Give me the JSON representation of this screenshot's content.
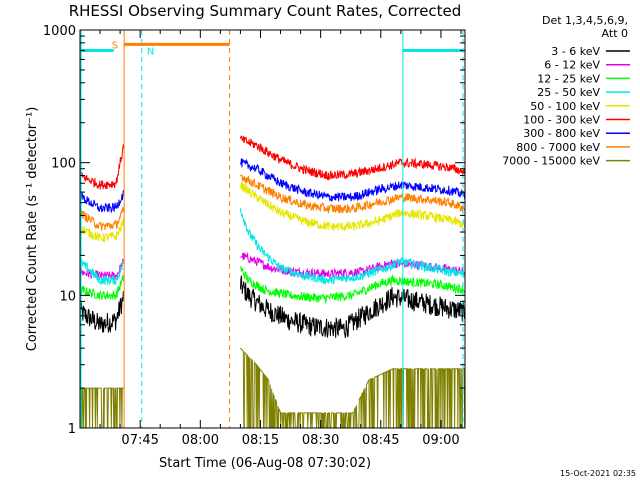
{
  "chart_data": {
    "type": "line",
    "title": "RHESSI Observing Summary Count Rates, Corrected",
    "xlabel": "Start Time (06-Aug-08 07:30:02)",
    "ylabel": "Corrected Count Rate (s⁻¹ detector⁻¹)",
    "y_scale": "log",
    "ylim": [
      1,
      1000
    ],
    "xlim_minutes": [
      0,
      96
    ],
    "x_tick_labels": [
      "07:45",
      "08:00",
      "08:15",
      "08:30",
      "08:45",
      "09:00"
    ],
    "x_tick_minutes": [
      15,
      30,
      45,
      60,
      75,
      90
    ],
    "y_tick_labels": [
      "1",
      "10",
      "100",
      "1000"
    ],
    "y_tick_values": [
      1,
      10,
      100,
      1000
    ],
    "legend_header": [
      "Det 1,3,4,5,6,9,",
      "Att 0"
    ],
    "legend_position": "right",
    "series": [
      {
        "name": "3 - 6 keV",
        "color": "#000000",
        "seg1": [
          [
            0,
            7.5
          ],
          [
            5,
            6
          ],
          [
            9,
            6.5
          ],
          [
            11,
            10
          ]
        ],
        "seg2": [
          [
            40,
            12
          ],
          [
            42,
            10
          ],
          [
            46,
            8
          ],
          [
            52,
            6.5
          ],
          [
            58,
            5.8
          ],
          [
            66,
            5.6
          ],
          [
            72,
            7.5
          ],
          [
            78,
            9.8
          ],
          [
            84,
            9
          ],
          [
            90,
            8.2
          ],
          [
            96,
            7.5
          ]
        ]
      },
      {
        "name": "6 - 12 keV",
        "color": "#e600e6",
        "seg1": [
          [
            0,
            15
          ],
          [
            5,
            14
          ],
          [
            9,
            14
          ],
          [
            11,
            18
          ]
        ],
        "seg2": [
          [
            40,
            20
          ],
          [
            44,
            18
          ],
          [
            48,
            16
          ],
          [
            54,
            15
          ],
          [
            62,
            14.5
          ],
          [
            70,
            15
          ],
          [
            78,
            17.5
          ],
          [
            84,
            17
          ],
          [
            90,
            16
          ],
          [
            96,
            15
          ]
        ]
      },
      {
        "name": "12 - 25 keV",
        "color": "#00ff00",
        "seg1": [
          [
            0,
            11
          ],
          [
            5,
            10
          ],
          [
            9,
            10
          ],
          [
            11,
            14
          ]
        ],
        "seg2": [
          [
            40,
            16
          ],
          [
            42,
            13
          ],
          [
            46,
            11
          ],
          [
            52,
            10
          ],
          [
            60,
            9.5
          ],
          [
            68,
            10
          ],
          [
            74,
            12
          ],
          [
            78,
            13
          ],
          [
            84,
            12.5
          ],
          [
            90,
            12
          ],
          [
            96,
            11
          ]
        ]
      },
      {
        "name": "25 - 50 keV",
        "color": "#00e6e6",
        "seg1": [
          [
            0,
            18
          ],
          [
            5,
            13
          ],
          [
            9,
            13
          ],
          [
            11,
            18
          ]
        ],
        "seg2": [
          [
            40,
            45
          ],
          [
            42,
            30
          ],
          [
            45,
            22
          ],
          [
            50,
            16
          ],
          [
            56,
            14
          ],
          [
            62,
            13
          ],
          [
            70,
            14
          ],
          [
            76,
            16
          ],
          [
            80,
            18
          ],
          [
            86,
            16.5
          ],
          [
            92,
            15
          ],
          [
            96,
            14.5
          ]
        ]
      },
      {
        "name": "50 - 100 keV",
        "color": "#e6e600",
        "seg1": [
          [
            0,
            32
          ],
          [
            5,
            27
          ],
          [
            9,
            28
          ],
          [
            11,
            36
          ]
        ],
        "seg2": [
          [
            40,
            68
          ],
          [
            44,
            55
          ],
          [
            50,
            42
          ],
          [
            56,
            36
          ],
          [
            62,
            33
          ],
          [
            68,
            33
          ],
          [
            74,
            36
          ],
          [
            80,
            42
          ],
          [
            86,
            40
          ],
          [
            92,
            37
          ],
          [
            96,
            34
          ]
        ]
      },
      {
        "name": "100 - 300 keV",
        "color": "#ff0000",
        "seg1": [
          [
            0,
            80
          ],
          [
            5,
            68
          ],
          [
            9,
            70
          ],
          [
            11,
            140
          ]
        ],
        "seg2": [
          [
            40,
            150
          ],
          [
            44,
            135
          ],
          [
            50,
            105
          ],
          [
            56,
            88
          ],
          [
            62,
            80
          ],
          [
            68,
            82
          ],
          [
            74,
            90
          ],
          [
            80,
            100
          ],
          [
            86,
            97
          ],
          [
            92,
            92
          ],
          [
            96,
            85
          ]
        ]
      },
      {
        "name": "300 - 800 keV",
        "color": "#0000ff",
        "seg1": [
          [
            0,
            56
          ],
          [
            5,
            45
          ],
          [
            9,
            46
          ],
          [
            11,
            60
          ]
        ],
        "seg2": [
          [
            40,
            100
          ],
          [
            44,
            90
          ],
          [
            50,
            70
          ],
          [
            56,
            60
          ],
          [
            62,
            55
          ],
          [
            68,
            55
          ],
          [
            74,
            62
          ],
          [
            80,
            68
          ],
          [
            86,
            65
          ],
          [
            92,
            62
          ],
          [
            96,
            57
          ]
        ]
      },
      {
        "name": "800 - 7000 keV",
        "color": "#ff8000",
        "seg1": [
          [
            0,
            42
          ],
          [
            5,
            33
          ],
          [
            9,
            34
          ],
          [
            11,
            44
          ]
        ],
        "seg2": [
          [
            40,
            80
          ],
          [
            44,
            68
          ],
          [
            50,
            55
          ],
          [
            56,
            48
          ],
          [
            62,
            45
          ],
          [
            68,
            45
          ],
          [
            74,
            50
          ],
          [
            80,
            55
          ],
          [
            86,
            53
          ],
          [
            92,
            50
          ],
          [
            96,
            45
          ]
        ]
      },
      {
        "name": "7000 - 15000 keV",
        "color": "#808000",
        "seg1": [
          [
            0,
            2
          ],
          [
            9,
            2
          ],
          [
            11,
            2
          ]
        ],
        "seg2": [
          [
            40,
            4
          ],
          [
            44,
            3
          ],
          [
            47,
            2.3
          ],
          [
            50,
            1.3
          ],
          [
            56,
            1.3
          ],
          [
            68,
            1.3
          ],
          [
            72,
            2.3
          ],
          [
            78,
            2.8
          ],
          [
            96,
            2.8
          ]
        ]
      }
    ],
    "annotations": [
      {
        "label": "S",
        "color": "#ff8000",
        "x_start": 11,
        "x_end": 37.3
      },
      {
        "label": "N",
        "color": "#00e6e6",
        "x_start": 0,
        "x_end": 8.4
      }
    ],
    "markers": [
      {
        "x": 11,
        "color": "#ff8000",
        "style": "solid"
      },
      {
        "x": 15.4,
        "color": "#00e6e6",
        "style": "dashed"
      },
      {
        "x": 37.3,
        "color": "#ff8000",
        "style": "dashed"
      },
      {
        "x": 80.5,
        "color": "#00e6e6",
        "style": "solid"
      },
      {
        "x": 95.5,
        "color": "#00e6e6",
        "style": "dashed"
      }
    ],
    "cyan_bars": [
      {
        "x_start": 0,
        "x_end": 8.4,
        "y": 700
      },
      {
        "x_start": 80.5,
        "x_end": 95.5,
        "y": 700
      }
    ],
    "gaps": [
      [
        11,
        40
      ]
    ]
  },
  "footer": {
    "timestamp": "15-Oct-2021 02:35"
  }
}
